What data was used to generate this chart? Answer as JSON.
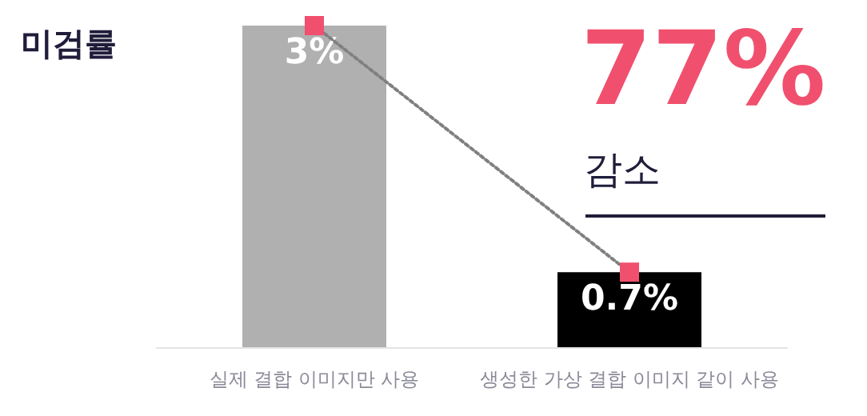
{
  "chart_data": {
    "type": "bar",
    "title": "미검률",
    "categories": [
      "실제 결합 이미지만 사용",
      "생성한 가상 결합 이미지 같이 사용"
    ],
    "series": [
      {
        "colors": [
          "#b0b0b0",
          "#000000"
        ],
        "values": [
          3,
          0.7
        ],
        "value_labels": [
          "3%",
          "0.7%"
        ]
      },
      {
        "type": "line",
        "color": "#f0506e",
        "values": [
          3,
          0.7
        ]
      }
    ],
    "marker": "square",
    "line_style": "dotted",
    "annotations": [
      "77%",
      "감소"
    ]
  }
}
